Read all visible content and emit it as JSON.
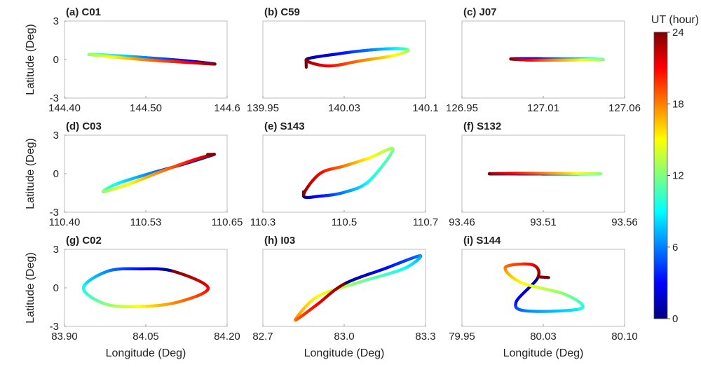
{
  "colorbar": {
    "label": "UT (hour)",
    "ticks": [
      0,
      6,
      12,
      18,
      24
    ],
    "range": [
      0,
      24
    ]
  },
  "chart_data": [
    {
      "type": "line",
      "panel_label": "(a) C01",
      "xlabel": "",
      "ylabel": "Latitude (Deg)",
      "xlim": [
        144.4,
        144.6
      ],
      "ylim": [
        -3,
        3
      ],
      "xtick_labels": [
        "144.40",
        "144.50",
        "144.6"
      ],
      "ytick_labels": [
        "-3",
        "0",
        "3"
      ],
      "x": [
        144.585,
        144.55,
        144.5,
        144.46,
        144.43,
        144.46,
        144.5,
        144.55,
        144.585
      ],
      "y": [
        -0.35,
        -0.1,
        0.15,
        0.32,
        0.4,
        0.2,
        -0.02,
        -0.22,
        -0.35
      ],
      "ut": [
        0,
        3,
        6,
        9,
        12,
        15,
        18,
        21,
        24
      ]
    },
    {
      "type": "line",
      "panel_label": "(b) C59",
      "xlabel": "",
      "ylabel": "",
      "xlim": [
        139.95,
        140.1
      ],
      "ylim": [
        -3,
        3
      ],
      "xtick_labels": [
        "139.95",
        "140.03",
        "140.1"
      ],
      "ytick_labels": [],
      "x": [
        139.99,
        140.02,
        140.05,
        140.075,
        140.084,
        140.07,
        140.04,
        140.01,
        139.99
      ],
      "y": [
        0.0,
        0.45,
        0.75,
        0.85,
        0.7,
        0.3,
        -0.1,
        -0.5,
        -0.6
      ],
      "ut": [
        0,
        3,
        6,
        9,
        12,
        15,
        18,
        21,
        24
      ]
    },
    {
      "type": "line",
      "panel_label": "(c) J07",
      "xlabel": "",
      "ylabel": "",
      "xlim": [
        126.95,
        127.06
      ],
      "ylim": [
        -3,
        3
      ],
      "xtick_labels": [
        "126.95",
        "127.01",
        "127.06"
      ],
      "ytick_labels": [],
      "x": [
        126.983,
        127.0,
        127.02,
        127.04,
        127.045,
        127.03,
        127.01,
        126.995,
        126.983
      ],
      "y": [
        0.05,
        0.06,
        0.05,
        0.03,
        0.0,
        -0.03,
        -0.05,
        -0.04,
        0.05
      ],
      "ut": [
        0,
        3,
        6,
        9,
        12,
        15,
        18,
        21,
        24
      ]
    },
    {
      "type": "line",
      "panel_label": "(d) C03",
      "xlabel": "",
      "ylabel": "Latitude (Deg)",
      "xlim": [
        110.4,
        110.65
      ],
      "ylim": [
        -3,
        3
      ],
      "xtick_labels": [
        "110.40",
        "110.53",
        "110.65"
      ],
      "ytick_labels": [
        "-3",
        "0",
        "3"
      ],
      "x": [
        110.63,
        110.58,
        110.53,
        110.48,
        110.46,
        110.5,
        110.55,
        110.6,
        110.62
      ],
      "y": [
        1.5,
        0.7,
        0.0,
        -0.8,
        -1.4,
        -0.8,
        0.2,
        1.1,
        1.5
      ],
      "ut": [
        0,
        3,
        6,
        9,
        12,
        15,
        18,
        21,
        24
      ]
    },
    {
      "type": "line",
      "panel_label": "(e) S143",
      "xlabel": "",
      "ylabel": "",
      "xlim": [
        110.3,
        110.7
      ],
      "ylim": [
        -3,
        3
      ],
      "xtick_labels": [
        "110.3",
        "110.5",
        "110.7"
      ],
      "ytick_labels": [],
      "x": [
        110.4,
        110.44,
        110.5,
        110.56,
        110.62,
        110.56,
        110.5,
        110.44,
        110.4
      ],
      "y": [
        -1.7,
        -1.75,
        -1.45,
        -0.6,
        1.9,
        1.2,
        0.6,
        0.0,
        -1.4
      ],
      "ut": [
        0,
        3,
        6,
        9,
        12,
        15,
        18,
        21,
        24
      ]
    },
    {
      "type": "line",
      "panel_label": "(f) S132",
      "xlabel": "",
      "ylabel": "",
      "xlim": [
        93.46,
        93.56
      ],
      "ylim": [
        -3,
        3
      ],
      "xtick_labels": [
        "93.46",
        "93.51",
        "93.56"
      ],
      "ytick_labels": [],
      "x": [
        93.477,
        93.5,
        93.52,
        93.538,
        93.545,
        93.53,
        93.51,
        93.49,
        93.477
      ],
      "y": [
        -0.01,
        -0.02,
        -0.03,
        -0.02,
        0.0,
        0.02,
        0.03,
        0.03,
        0.02
      ],
      "ut": [
        0,
        3,
        6,
        9,
        12,
        15,
        18,
        21,
        24
      ]
    },
    {
      "type": "line",
      "panel_label": "(g) C02",
      "xlabel": "Longitude (Deg)",
      "ylabel": "Latitude (Deg)",
      "xlim": [
        83.9,
        84.2
      ],
      "ylim": [
        -3,
        3
      ],
      "xtick_labels": [
        "83.90",
        "84.05",
        "84.20"
      ],
      "ytick_labels": [
        "-3",
        "0",
        "3"
      ],
      "x": [
        84.1,
        84.04,
        83.98,
        83.935,
        83.975,
        84.04,
        84.11,
        84.165,
        84.1
      ],
      "y": [
        1.3,
        1.48,
        1.3,
        0.0,
        -1.25,
        -1.45,
        -1.1,
        0.0,
        1.3
      ],
      "ut": [
        0,
        3,
        6,
        9,
        12,
        15,
        18,
        21,
        24
      ]
    },
    {
      "type": "line",
      "panel_label": "(h) I03",
      "xlabel": "Longitude (Deg)",
      "ylabel": "",
      "xlim": [
        82.7,
        83.3
      ],
      "ylim": [
        -3,
        3
      ],
      "xtick_labels": [
        "82.7",
        "83.0",
        "83.3"
      ],
      "ytick_labels": [],
      "x": [
        83.0,
        83.15,
        83.28,
        83.22,
        83.05,
        82.9,
        82.82,
        82.9,
        83.0
      ],
      "y": [
        0.3,
        1.5,
        2.5,
        1.5,
        0.4,
        -0.7,
        -2.5,
        -1.3,
        0.3
      ],
      "ut": [
        0,
        3,
        6,
        9,
        12,
        15,
        18,
        21,
        24
      ]
    },
    {
      "type": "line",
      "panel_label": "(i) S144",
      "xlabel": "Longitude (Deg)",
      "ylabel": "",
      "xlim": [
        79.95,
        80.1
      ],
      "ylim": [
        -3,
        3
      ],
      "xtick_labels": [
        "79.95",
        "80.03",
        "80.10"
      ],
      "ytick_labels": [],
      "x": [
        80.02,
        80.0,
        80.01,
        80.06,
        80.045,
        80.005,
        79.99,
        80.015,
        80.03
      ],
      "y": [
        0.8,
        -1.1,
        -1.8,
        -1.6,
        -0.5,
        0.4,
        1.6,
        1.8,
        0.8
      ],
      "ut": [
        0,
        3,
        6,
        9,
        12,
        15,
        18,
        21,
        24
      ]
    }
  ]
}
